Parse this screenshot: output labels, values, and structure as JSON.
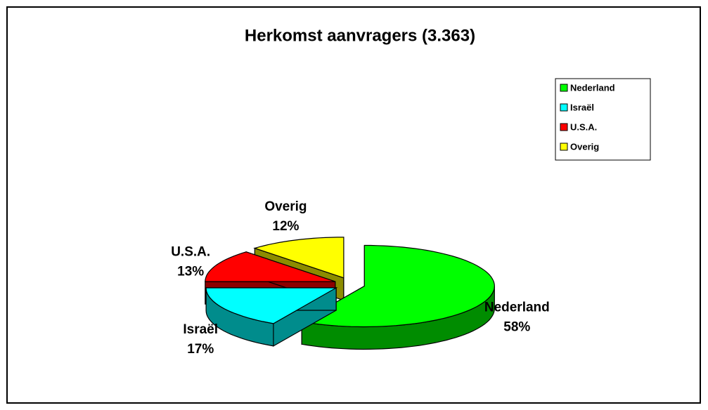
{
  "chart_data": {
    "type": "pie",
    "title": "Herkomst aanvragers (3.363)",
    "categories": [
      "Nederland",
      "Israël",
      "U.S.A.",
      "Overig"
    ],
    "values": [
      58,
      17,
      13,
      12
    ],
    "value_labels": [
      "58%",
      "17%",
      "13%",
      "12%"
    ],
    "colors": [
      "#00ff00",
      "#00ffff",
      "#ff0000",
      "#ffff00"
    ],
    "legend": "top-right",
    "exploded": true,
    "three_d": true
  }
}
